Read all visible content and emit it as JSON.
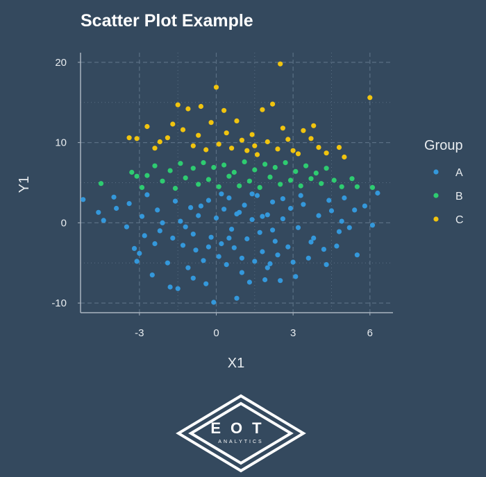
{
  "chart_data": {
    "type": "scatter",
    "title": "Scatter Plot Example",
    "xlabel": "X1",
    "ylabel": "Y1",
    "xlim": [
      -5.3,
      6.9
    ],
    "ylim": [
      -11.2,
      21.2
    ],
    "x_ticks": [
      -3,
      0,
      3,
      6
    ],
    "x_tick_labels": [
      "-3",
      "0",
      "3",
      "6"
    ],
    "y_ticks": [
      -10,
      0,
      10,
      20
    ],
    "y_tick_labels": [
      "-10",
      "0",
      "10",
      "20"
    ],
    "grid": true,
    "legend": {
      "title": "Group",
      "position": "right"
    },
    "series": [
      {
        "name": "A",
        "color": "#3498db",
        "points": [
          [
            -5.2,
            2.9
          ],
          [
            -4.6,
            1.3
          ],
          [
            -4.4,
            0.3
          ],
          [
            -3.4,
            2.4
          ],
          [
            -3.2,
            -3.2
          ],
          [
            -3.1,
            -4.8
          ],
          [
            -3.0,
            -3.8
          ],
          [
            -2.9,
            0.8
          ],
          [
            -2.7,
            3.5
          ],
          [
            -2.3,
            1.6
          ],
          [
            -2.4,
            -2.6
          ],
          [
            -2.5,
            -6.5
          ],
          [
            -2.2,
            -1.0
          ],
          [
            -1.9,
            -5.0
          ],
          [
            -1.8,
            -8.0
          ],
          [
            -1.5,
            -8.2
          ],
          [
            -1.6,
            2.7
          ],
          [
            -1.4,
            0.2
          ],
          [
            -1.3,
            -2.8
          ],
          [
            -1.1,
            -5.6
          ],
          [
            -1.0,
            1.9
          ],
          [
            -0.9,
            -1.4
          ],
          [
            -0.8,
            -3.4
          ],
          [
            -0.7,
            0.9
          ],
          [
            -0.5,
            -4.7
          ],
          [
            -0.4,
            -7.6
          ],
          [
            -0.3,
            2.8
          ],
          [
            -0.2,
            -1.8
          ],
          [
            -0.1,
            -9.9
          ],
          [
            0.0,
            0.6
          ],
          [
            0.1,
            -4.2
          ],
          [
            0.2,
            -2.6
          ],
          [
            0.3,
            1.7
          ],
          [
            0.4,
            -5.2
          ],
          [
            0.5,
            3.1
          ],
          [
            0.6,
            -0.8
          ],
          [
            0.7,
            -3.1
          ],
          [
            0.8,
            -9.4
          ],
          [
            0.9,
            1.3
          ],
          [
            1.0,
            -6.2
          ],
          [
            1.1,
            2.2
          ],
          [
            1.2,
            -2.0
          ],
          [
            1.3,
            -7.4
          ],
          [
            1.4,
            0.4
          ],
          [
            1.5,
            -4.8
          ],
          [
            1.6,
            3.4
          ],
          [
            1.7,
            -1.2
          ],
          [
            1.8,
            -3.6
          ],
          [
            1.9,
            -7.1
          ],
          [
            2.0,
            1.0
          ],
          [
            2.1,
            -5.1
          ],
          [
            2.2,
            2.6
          ],
          [
            2.3,
            -2.3
          ],
          [
            2.4,
            -4.0
          ],
          [
            2.5,
            -7.2
          ],
          [
            2.6,
            0.5
          ],
          [
            2.8,
            -3.0
          ],
          [
            2.9,
            1.8
          ],
          [
            3.1,
            -6.7
          ],
          [
            3.2,
            -0.6
          ],
          [
            3.4,
            2.3
          ],
          [
            3.6,
            -4.4
          ],
          [
            3.8,
            -1.9
          ],
          [
            4.0,
            0.9
          ],
          [
            4.2,
            -3.3
          ],
          [
            4.3,
            -5.2
          ],
          [
            4.5,
            1.5
          ],
          [
            4.7,
            -2.9
          ],
          [
            4.8,
            -1.1
          ],
          [
            5.0,
            3.1
          ],
          [
            5.2,
            -0.6
          ],
          [
            5.5,
            -4.0
          ],
          [
            5.8,
            2.1
          ],
          [
            6.1,
            -0.3
          ],
          [
            6.3,
            3.7
          ],
          [
            -3.9,
            1.8
          ],
          [
            -3.5,
            -0.5
          ],
          [
            -2.1,
            0.0
          ],
          [
            -1.7,
            -1.9
          ],
          [
            -0.6,
            2.1
          ],
          [
            0.2,
            3.6
          ],
          [
            1.4,
            3.6
          ],
          [
            2.6,
            3.0
          ],
          [
            3.3,
            3.4
          ],
          [
            4.4,
            2.8
          ],
          [
            -4.0,
            3.2
          ],
          [
            -2.8,
            -1.6
          ],
          [
            -0.9,
            -6.9
          ],
          [
            1.0,
            -4.4
          ],
          [
            2.0,
            -5.6
          ],
          [
            3.0,
            -4.9
          ],
          [
            4.9,
            0.2
          ],
          [
            5.4,
            1.6
          ],
          [
            0.5,
            -1.9
          ],
          [
            -0.3,
            -3.0
          ],
          [
            1.8,
            0.8
          ],
          [
            2.2,
            -0.9
          ],
          [
            -1.2,
            -0.5
          ],
          [
            0.8,
            1.1
          ],
          [
            3.7,
            -2.4
          ]
        ]
      },
      {
        "name": "B",
        "color": "#2ecc71",
        "points": [
          [
            -4.5,
            4.9
          ],
          [
            -3.3,
            6.3
          ],
          [
            -3.1,
            5.8
          ],
          [
            -2.9,
            4.4
          ],
          [
            -2.7,
            5.9
          ],
          [
            -2.4,
            7.1
          ],
          [
            -2.1,
            5.2
          ],
          [
            -1.8,
            6.5
          ],
          [
            -1.6,
            4.3
          ],
          [
            -1.4,
            7.4
          ],
          [
            -1.2,
            5.6
          ],
          [
            -0.9,
            6.8
          ],
          [
            -0.7,
            4.8
          ],
          [
            -0.5,
            7.5
          ],
          [
            -0.3,
            5.4
          ],
          [
            -0.1,
            6.9
          ],
          [
            0.1,
            4.5
          ],
          [
            0.3,
            7.2
          ],
          [
            0.5,
            5.8
          ],
          [
            0.7,
            6.3
          ],
          [
            0.9,
            4.6
          ],
          [
            1.1,
            7.6
          ],
          [
            1.3,
            5.2
          ],
          [
            1.5,
            6.6
          ],
          [
            1.7,
            4.4
          ],
          [
            1.9,
            7.3
          ],
          [
            2.1,
            5.7
          ],
          [
            2.3,
            6.9
          ],
          [
            2.5,
            4.8
          ],
          [
            2.7,
            7.5
          ],
          [
            2.9,
            5.3
          ],
          [
            3.1,
            6.4
          ],
          [
            3.3,
            4.6
          ],
          [
            3.5,
            7.1
          ],
          [
            3.7,
            5.5
          ],
          [
            3.9,
            6.2
          ],
          [
            4.1,
            4.9
          ],
          [
            4.3,
            6.8
          ],
          [
            4.6,
            5.3
          ],
          [
            4.9,
            4.5
          ],
          [
            5.3,
            5.5
          ],
          [
            5.5,
            4.5
          ],
          [
            6.1,
            4.4
          ]
        ]
      },
      {
        "name": "C",
        "color": "#f1c40f",
        "points": [
          [
            -3.4,
            10.6
          ],
          [
            -3.1,
            10.5
          ],
          [
            -2.7,
            12.0
          ],
          [
            -2.4,
            9.3
          ],
          [
            -2.2,
            10.1
          ],
          [
            -1.9,
            10.6
          ],
          [
            -1.7,
            12.3
          ],
          [
            -1.5,
            14.7
          ],
          [
            -1.3,
            11.6
          ],
          [
            -1.1,
            14.2
          ],
          [
            -0.9,
            9.6
          ],
          [
            -0.7,
            10.9
          ],
          [
            -0.6,
            14.5
          ],
          [
            -0.4,
            9.1
          ],
          [
            -0.2,
            12.5
          ],
          [
            0.0,
            16.9
          ],
          [
            0.1,
            9.8
          ],
          [
            0.3,
            14.0
          ],
          [
            0.4,
            11.2
          ],
          [
            0.6,
            9.3
          ],
          [
            0.8,
            12.7
          ],
          [
            1.0,
            10.3
          ],
          [
            1.2,
            9.0
          ],
          [
            1.4,
            11.0
          ],
          [
            1.5,
            9.6
          ],
          [
            1.6,
            8.5
          ],
          [
            1.8,
            14.1
          ],
          [
            2.0,
            10.1
          ],
          [
            2.2,
            14.8
          ],
          [
            2.4,
            9.2
          ],
          [
            2.5,
            19.8
          ],
          [
            2.6,
            11.8
          ],
          [
            2.8,
            10.4
          ],
          [
            3.0,
            9.0
          ],
          [
            3.2,
            8.6
          ],
          [
            3.4,
            11.5
          ],
          [
            3.7,
            10.5
          ],
          [
            3.8,
            12.1
          ],
          [
            4.0,
            9.4
          ],
          [
            4.3,
            8.7
          ],
          [
            4.8,
            9.4
          ],
          [
            5.0,
            8.2
          ],
          [
            6.0,
            15.6
          ]
        ]
      }
    ]
  },
  "logo": {
    "line1": "EOT",
    "line2": "ANALYTICS"
  }
}
